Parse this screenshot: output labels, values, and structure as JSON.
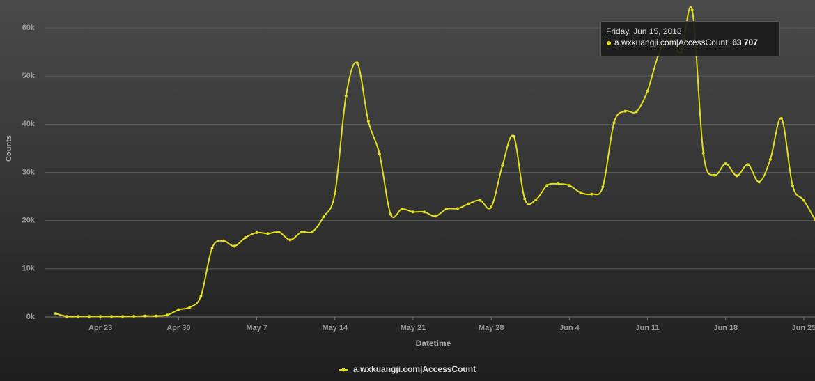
{
  "chart_data": {
    "type": "line",
    "x": [
      "2018-04-19",
      "2018-04-20",
      "2018-04-21",
      "2018-04-22",
      "2018-04-23",
      "2018-04-24",
      "2018-04-25",
      "2018-04-26",
      "2018-04-27",
      "2018-04-28",
      "2018-04-29",
      "2018-04-30",
      "2018-05-01",
      "2018-05-02",
      "2018-05-03",
      "2018-05-04",
      "2018-05-05",
      "2018-05-06",
      "2018-05-07",
      "2018-05-08",
      "2018-05-09",
      "2018-05-10",
      "2018-05-11",
      "2018-05-12",
      "2018-05-13",
      "2018-05-14",
      "2018-05-15",
      "2018-05-16",
      "2018-05-17",
      "2018-05-18",
      "2018-05-19",
      "2018-05-20",
      "2018-05-21",
      "2018-05-22",
      "2018-05-23",
      "2018-05-24",
      "2018-05-25",
      "2018-05-26",
      "2018-05-27",
      "2018-05-28",
      "2018-05-29",
      "2018-05-30",
      "2018-05-31",
      "2018-06-01",
      "2018-06-02",
      "2018-06-03",
      "2018-06-04",
      "2018-06-05",
      "2018-06-06",
      "2018-06-07",
      "2018-06-08",
      "2018-06-09",
      "2018-06-10",
      "2018-06-11",
      "2018-06-12",
      "2018-06-13",
      "2018-06-14",
      "2018-06-15",
      "2018-06-16",
      "2018-06-17",
      "2018-06-18",
      "2018-06-19",
      "2018-06-20",
      "2018-06-21",
      "2018-06-22",
      "2018-06-23",
      "2018-06-24",
      "2018-06-25",
      "2018-06-26"
    ],
    "series": [
      {
        "name": "a.wxkuangji.com|AccessCount",
        "color": "#e3de1f",
        "values": [
          700,
          100,
          100,
          100,
          100,
          100,
          100,
          150,
          200,
          200,
          400,
          1500,
          2000,
          4300,
          14300,
          15800,
          14700,
          16500,
          17500,
          17300,
          17600,
          16000,
          17600,
          17700,
          20800,
          25600,
          45900,
          52700,
          40600,
          33800,
          21300,
          22400,
          21800,
          21800,
          20900,
          22400,
          22500,
          23500,
          24200,
          22800,
          31400,
          37500,
          24500,
          24300,
          27300,
          27600,
          27300,
          25800,
          25500,
          27000,
          40300,
          42700,
          42600,
          46900,
          54500,
          57700,
          55000,
          63707,
          34000,
          29400,
          31800,
          29300,
          31600,
          28000,
          32700,
          41200,
          27200,
          24200,
          20200
        ]
      }
    ],
    "xlabel": "Datetime",
    "ylabel": "Counts",
    "xlim": [
      "2018-04-18",
      "2018-06-26"
    ],
    "xticks": [
      {
        "value": "2018-04-23",
        "label": "Apr 23"
      },
      {
        "value": "2018-04-30",
        "label": "Apr 30"
      },
      {
        "value": "2018-05-07",
        "label": "May 7"
      },
      {
        "value": "2018-05-14",
        "label": "May 14"
      },
      {
        "value": "2018-05-21",
        "label": "May 21"
      },
      {
        "value": "2018-05-28",
        "label": "May 28"
      },
      {
        "value": "2018-06-04",
        "label": "Jun 4"
      },
      {
        "value": "2018-06-11",
        "label": "Jun 11"
      },
      {
        "value": "2018-06-18",
        "label": "Jun 18"
      },
      {
        "value": "2018-06-25",
        "label": "Jun 25"
      }
    ],
    "ylim": [
      0,
      65000
    ],
    "yticks": [
      {
        "value": 0,
        "label": "0k"
      },
      {
        "value": 10000,
        "label": "10k"
      },
      {
        "value": 20000,
        "label": "20k"
      },
      {
        "value": 30000,
        "label": "30k"
      },
      {
        "value": 40000,
        "label": "40k"
      },
      {
        "value": 50000,
        "label": "50k"
      },
      {
        "value": 60000,
        "label": "60k"
      }
    ],
    "grid": true,
    "legend": "bottom",
    "tooltip": {
      "title": "Friday, Jun 15, 2018",
      "series_label": "a.wxkuangji.com|AccessCount:",
      "value_label": "63 707"
    }
  }
}
